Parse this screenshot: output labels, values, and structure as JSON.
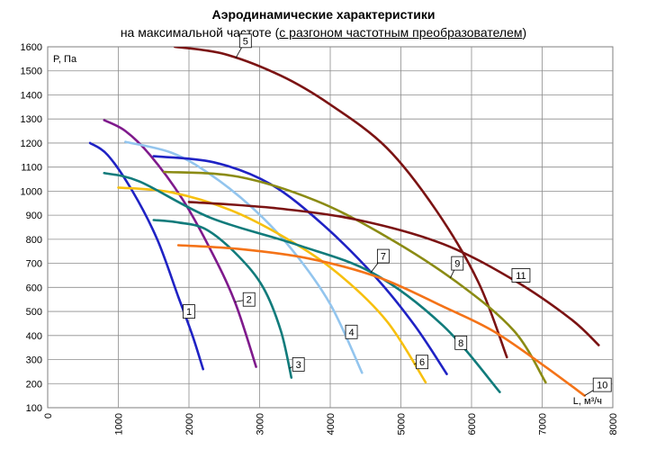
{
  "chart_data": {
    "type": "line",
    "title": "Аэродинамические характеристики",
    "subtitle": {
      "prefix": "на максимальной частоте (",
      "underlined": "с разгоном частотным преобразователем",
      "suffix": ")"
    },
    "xlabel": "L, м³/ч",
    "ylabel": "P, Па",
    "xlim": [
      0,
      8000
    ],
    "ylim": [
      100,
      1600
    ],
    "xticks": [
      "0",
      "1000",
      "2000",
      "3000",
      "4000",
      "5000",
      "6000",
      "7000",
      "8000"
    ],
    "yticks": [
      "100",
      "200",
      "300",
      "400",
      "500",
      "600",
      "700",
      "800",
      "900",
      "1000",
      "1100",
      "1200",
      "1300",
      "1400",
      "1500",
      "1600"
    ],
    "grid": true,
    "series": [
      {
        "name": "1",
        "color": "#1f22c4",
        "x": [
          600,
          850,
          1200,
          1550,
          1850,
          2050,
          2200
        ],
        "y": [
          1200,
          1150,
          1000,
          800,
          560,
          400,
          260
        ]
      },
      {
        "name": "2",
        "color": "#7f1a8c",
        "x": [
          800,
          1100,
          1450,
          1900,
          2300,
          2650,
          2950
        ],
        "y": [
          1295,
          1250,
          1150,
          970,
          760,
          540,
          270
        ]
      },
      {
        "name": "3",
        "color": "#117b7b",
        "x": [
          1500,
          1850,
          2250,
          2700,
          3050,
          3300,
          3450
        ],
        "y": [
          880,
          870,
          840,
          730,
          600,
          420,
          225
        ]
      },
      {
        "name": "4",
        "color": "#93c5ee",
        "x": [
          1100,
          1750,
          2300,
          2900,
          3450,
          4000,
          4450
        ],
        "y": [
          1205,
          1160,
          1070,
          930,
          760,
          530,
          245
        ]
      },
      {
        "name": "5",
        "color": "#7b1313",
        "x": [
          1800,
          2500,
          3300,
          4000,
          4800,
          5500,
          6100,
          6500
        ],
        "y": [
          1600,
          1570,
          1480,
          1360,
          1180,
          920,
          620,
          310
        ]
      },
      {
        "name": "6",
        "color": "#f7c00f",
        "x": [
          1000,
          1750,
          2600,
          3400,
          4100,
          4800,
          5350
        ],
        "y": [
          1015,
          995,
          920,
          800,
          660,
          460,
          205
        ]
      },
      {
        "name": "7",
        "color": "#1f22c4",
        "x": [
          1500,
          2350,
          3150,
          3900,
          4650,
          5200,
          5650
        ],
        "y": [
          1145,
          1120,
          1030,
          860,
          640,
          440,
          240
        ]
      },
      {
        "name": "8",
        "color": "#117b7b",
        "x": [
          800,
          1300,
          2300,
          3500,
          4600,
          5600,
          6400
        ],
        "y": [
          1075,
          1040,
          890,
          780,
          660,
          440,
          165
        ]
      },
      {
        "name": "9",
        "color": "#8b8b14",
        "x": [
          1650,
          2700,
          3800,
          4800,
          5800,
          6600,
          7050
        ],
        "y": [
          1080,
          1060,
          960,
          810,
          620,
          420,
          205
        ]
      },
      {
        "name": "10",
        "color": "#f47318",
        "x": [
          1850,
          2700,
          3700,
          4700,
          5600,
          6300,
          7000,
          7600
        ],
        "y": [
          775,
          760,
          720,
          640,
          520,
          420,
          280,
          150
        ]
      },
      {
        "name": "11",
        "color": "#7b1313",
        "x": [
          2000,
          3200,
          4400,
          5600,
          6600,
          7400,
          7800
        ],
        "y": [
          955,
          930,
          880,
          780,
          630,
          470,
          360
        ]
      }
    ],
    "labels": [
      {
        "text": "1",
        "series": "1",
        "x": 2000,
        "y": 500
      },
      {
        "text": "2",
        "series": "2",
        "x": 2850,
        "y": 550
      },
      {
        "text": "3",
        "series": "3",
        "x": 3550,
        "y": 280
      },
      {
        "text": "4",
        "series": "4",
        "x": 4300,
        "y": 415
      },
      {
        "text": "5",
        "series": "5",
        "x": 2800,
        "y": 1625
      },
      {
        "text": "6",
        "series": "6",
        "x": 5300,
        "y": 290
      },
      {
        "text": "7",
        "series": "7",
        "x": 4750,
        "y": 730
      },
      {
        "text": "8",
        "series": "8",
        "x": 5850,
        "y": 370
      },
      {
        "text": "9",
        "series": "9",
        "x": 5800,
        "y": 700
      },
      {
        "text": "10",
        "series": "10",
        "x": 7850,
        "y": 195
      },
      {
        "text": "11",
        "series": "11",
        "x": 6700,
        "y": 650
      }
    ]
  }
}
